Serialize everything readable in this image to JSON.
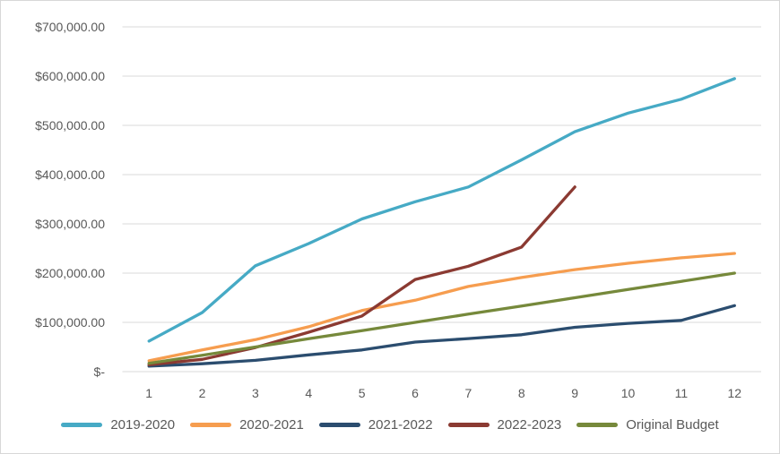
{
  "chart_data": {
    "type": "line",
    "title": "",
    "xlabel": "",
    "ylabel": "",
    "categories": [
      "1",
      "2",
      "3",
      "4",
      "5",
      "6",
      "7",
      "8",
      "9",
      "10",
      "11",
      "12"
    ],
    "series": [
      {
        "name": "2019-2020",
        "color": "#46aac5",
        "values": [
          62000,
          120000,
          215000,
          260000,
          310000,
          345000,
          375000,
          430000,
          487000,
          525000,
          553000,
          595000
        ]
      },
      {
        "name": "2020-2021",
        "color": "#f69d4f",
        "values": [
          22000,
          44000,
          65000,
          91000,
          124000,
          145000,
          173000,
          191000,
          207000,
          220000,
          231000,
          240000
        ]
      },
      {
        "name": "2021-2022",
        "color": "#2b4d6f",
        "values": [
          11000,
          16000,
          23000,
          34000,
          44000,
          60000,
          67000,
          75000,
          90000,
          98000,
          104000,
          134000
        ]
      },
      {
        "name": "2022-2023",
        "color": "#8b3a32",
        "values": [
          14000,
          25000,
          49000,
          80000,
          113000,
          187000,
          214000,
          253000,
          375000
        ]
      },
      {
        "name": "Original Budget",
        "color": "#76893b",
        "values": [
          16667,
          33333,
          50000,
          66667,
          83333,
          100000,
          116667,
          133333,
          150000,
          166667,
          183333,
          200000
        ]
      }
    ],
    "y_axis": {
      "min": 0,
      "max": 700000,
      "step": 100000,
      "tick_labels_bottom_to_top": [
        "$-",
        "$100,000.00",
        "$200,000.00",
        "$300,000.00",
        "$400,000.00",
        "$500,000.00",
        "$600,000.00",
        "$700,000.00"
      ]
    },
    "grid": true,
    "legend_position": "bottom",
    "gridline_color": "#d9d9d9",
    "axis_text_color": "#595959"
  }
}
